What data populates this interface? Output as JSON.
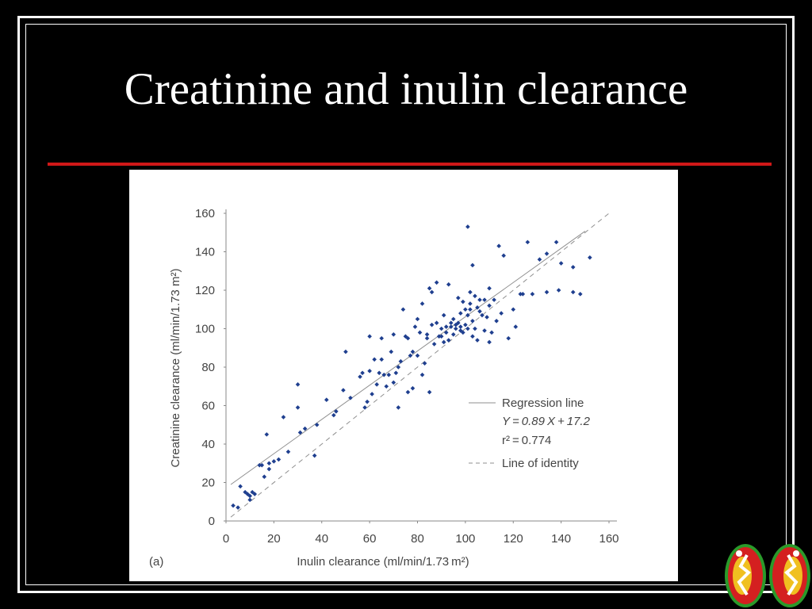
{
  "slide": {
    "title": "Creatinine and inulin clearance"
  },
  "colors": {
    "background": "#000000",
    "title_rule": "#d01818",
    "points": "#1f3f8f",
    "lines": "#8f8f8f"
  },
  "chart_data": {
    "type": "scatter",
    "panel_label": "(a)",
    "xlabel": "Inulin clearance (ml/min/1.73 m²)",
    "ylabel": "Creatinine clearance (ml/min/1.73 m²)",
    "xlim": [
      0,
      160
    ],
    "ylim": [
      0,
      160
    ],
    "x_ticks": [
      "0",
      "20",
      "40",
      "60",
      "80",
      "100",
      "120",
      "140",
      "160"
    ],
    "y_ticks": [
      "0",
      "20",
      "40",
      "60",
      "80",
      "100",
      "120",
      "140",
      "160"
    ],
    "grid": false,
    "legend_position": "bottom-right",
    "legend": {
      "regression_label": "Regression line",
      "equation": "Y = 0.89 X + 17.2",
      "r2": "r² = 0.774",
      "identity_label": "Line of identity"
    },
    "regression": {
      "slope": 0.89,
      "intercept": 17.2,
      "x_range": [
        2,
        150
      ]
    },
    "identity": {
      "x_range": [
        2,
        160
      ]
    },
    "series": [
      {
        "values": [
          [
            3,
            8
          ],
          [
            5,
            7
          ],
          [
            6,
            18
          ],
          [
            8,
            15
          ],
          [
            9,
            14
          ],
          [
            10,
            13
          ],
          [
            10,
            11
          ],
          [
            11,
            15
          ],
          [
            12,
            14
          ],
          [
            14,
            29
          ],
          [
            15,
            29
          ],
          [
            16,
            23
          ],
          [
            17,
            45
          ],
          [
            18,
            30
          ],
          [
            18,
            27
          ],
          [
            20,
            31
          ],
          [
            22,
            32
          ],
          [
            24,
            54
          ],
          [
            26,
            36
          ],
          [
            30,
            71
          ],
          [
            30,
            59
          ],
          [
            31,
            46
          ],
          [
            33,
            48
          ],
          [
            37,
            34
          ],
          [
            38,
            50
          ],
          [
            42,
            63
          ],
          [
            45,
            55
          ],
          [
            46,
            57
          ],
          [
            49,
            68
          ],
          [
            50,
            88
          ],
          [
            52,
            64
          ],
          [
            56,
            75
          ],
          [
            57,
            77
          ],
          [
            58,
            59
          ],
          [
            59,
            62
          ],
          [
            60,
            78
          ],
          [
            60,
            96
          ],
          [
            61,
            66
          ],
          [
            62,
            84
          ],
          [
            63,
            71
          ],
          [
            64,
            77
          ],
          [
            65,
            84
          ],
          [
            65,
            95
          ],
          [
            66,
            76
          ],
          [
            67,
            70
          ],
          [
            68,
            76
          ],
          [
            69,
            88
          ],
          [
            70,
            97
          ],
          [
            70,
            72
          ],
          [
            71,
            77
          ],
          [
            72,
            80
          ],
          [
            72,
            59
          ],
          [
            73,
            83
          ],
          [
            74,
            110
          ],
          [
            75,
            96
          ],
          [
            76,
            95
          ],
          [
            76,
            67
          ],
          [
            77,
            86
          ],
          [
            78,
            69
          ],
          [
            78,
            88
          ],
          [
            79,
            101
          ],
          [
            80,
            86
          ],
          [
            80,
            105
          ],
          [
            81,
            98
          ],
          [
            82,
            76
          ],
          [
            82,
            113
          ],
          [
            83,
            82
          ],
          [
            84,
            95
          ],
          [
            84,
            97
          ],
          [
            85,
            121
          ],
          [
            85,
            67
          ],
          [
            86,
            102
          ],
          [
            86,
            119
          ],
          [
            87,
            92
          ],
          [
            88,
            103
          ],
          [
            88,
            124
          ],
          [
            89,
            96
          ],
          [
            90,
            96
          ],
          [
            90,
            100
          ],
          [
            91,
            93
          ],
          [
            91,
            107
          ],
          [
            92,
            101
          ],
          [
            92,
            98
          ],
          [
            93,
            94
          ],
          [
            93,
            123
          ],
          [
            94,
            101
          ],
          [
            94,
            103
          ],
          [
            95,
            105
          ],
          [
            95,
            97
          ],
          [
            96,
            100
          ],
          [
            96,
            102
          ],
          [
            97,
            116
          ],
          [
            97,
            103
          ],
          [
            98,
            99
          ],
          [
            98,
            101
          ],
          [
            98,
            108
          ],
          [
            99,
            114
          ],
          [
            99,
            98
          ],
          [
            100,
            110
          ],
          [
            100,
            102
          ],
          [
            101,
            107
          ],
          [
            101,
            153
          ],
          [
            101,
            100
          ],
          [
            102,
            113
          ],
          [
            102,
            119
          ],
          [
            102,
            110
          ],
          [
            103,
            133
          ],
          [
            103,
            96
          ],
          [
            103,
            104
          ],
          [
            104,
            117
          ],
          [
            104,
            100
          ],
          [
            105,
            94
          ],
          [
            105,
            111
          ],
          [
            106,
            109
          ],
          [
            106,
            115
          ],
          [
            107,
            107
          ],
          [
            108,
            99
          ],
          [
            108,
            115
          ],
          [
            109,
            106
          ],
          [
            110,
            121
          ],
          [
            110,
            93
          ],
          [
            110,
            112
          ],
          [
            111,
            98
          ],
          [
            112,
            115
          ],
          [
            113,
            104
          ],
          [
            114,
            143
          ],
          [
            115,
            108
          ],
          [
            116,
            138
          ],
          [
            118,
            95
          ],
          [
            120,
            110
          ],
          [
            121,
            101
          ],
          [
            123,
            118
          ],
          [
            124,
            118
          ],
          [
            126,
            145
          ],
          [
            128,
            118
          ],
          [
            131,
            136
          ],
          [
            134,
            119
          ],
          [
            134,
            139
          ],
          [
            138,
            145
          ],
          [
            139,
            120
          ],
          [
            140,
            134
          ],
          [
            145,
            119
          ],
          [
            145,
            132
          ],
          [
            148,
            118
          ],
          [
            152,
            137
          ]
        ]
      }
    ]
  }
}
